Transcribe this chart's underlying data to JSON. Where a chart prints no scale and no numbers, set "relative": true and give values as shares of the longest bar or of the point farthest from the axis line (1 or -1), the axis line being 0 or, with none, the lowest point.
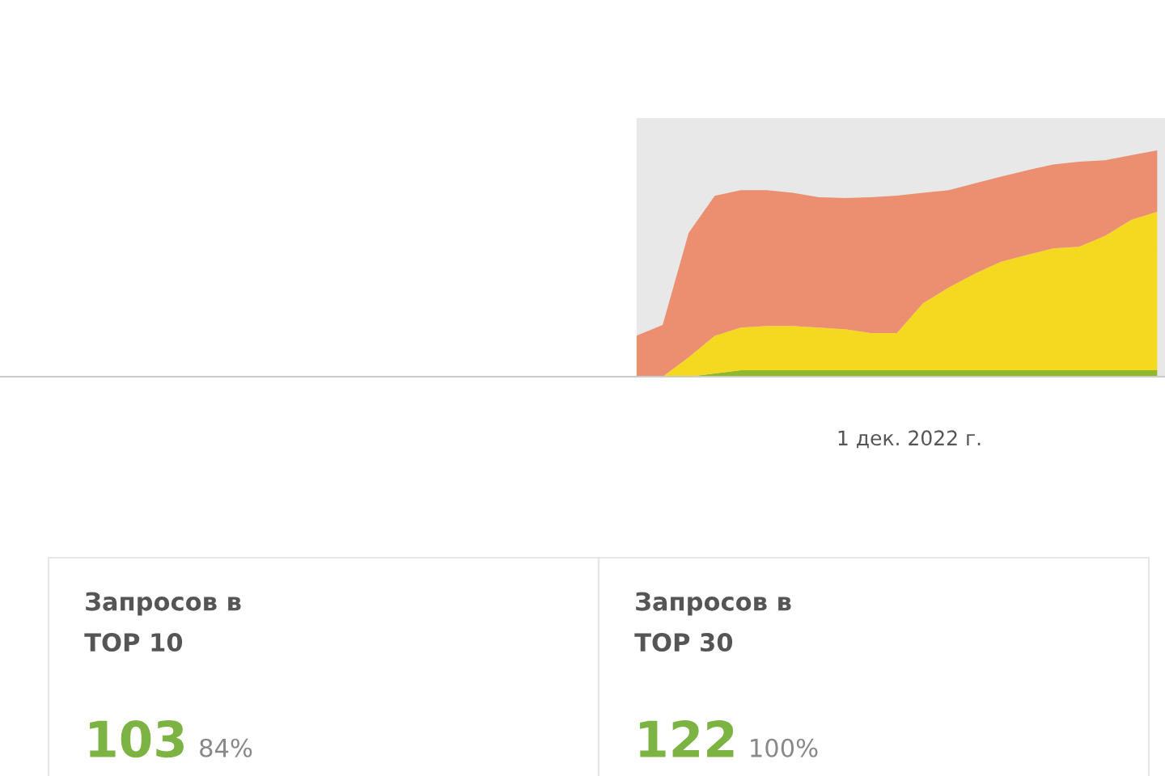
{
  "chart_data": [
    {
      "type": "area",
      "stacked": true,
      "relative": true,
      "categories": [
        null,
        null,
        null,
        null,
        null,
        null,
        null,
        null,
        null,
        null,
        null,
        null,
        null,
        null,
        null,
        null,
        null,
        null,
        null,
        null,
        null,
        null,
        null,
        null,
        null,
        null,
        null,
        null,
        null,
        null,
        null,
        null,
        null,
        null,
        null,
        null,
        null,
        null,
        null,
        null,
        null,
        null,
        null,
        null,
        null
      ],
      "annotations": [
        "1 дек. 2022 г."
      ],
      "series": [
        {
          "color": "#8fb82a",
          "values": [
            null,
            null,
            null,
            null,
            null,
            null,
            null,
            null,
            null,
            null,
            null,
            null,
            null,
            null,
            null,
            null,
            null,
            null,
            null,
            null,
            null,
            null,
            null,
            null,
            0,
            0,
            0,
            0.014,
            0.029,
            0.029,
            0.029,
            0.029,
            0.029,
            0.029,
            0.029,
            0.029,
            0.029,
            0.029,
            0.029,
            0.029,
            0.029,
            0.029,
            0.029,
            0.029,
            0.029
          ]
        },
        {
          "color": "#f5d820",
          "values": [
            null,
            null,
            null,
            null,
            null,
            null,
            null,
            null,
            null,
            null,
            null,
            null,
            null,
            null,
            null,
            null,
            null,
            null,
            null,
            null,
            null,
            null,
            null,
            null,
            0,
            0,
            0.086,
            0.166,
            0.188,
            0.195,
            0.195,
            0.188,
            0.181,
            0.164,
            0.164,
            0.295,
            0.366,
            0.426,
            0.479,
            0.509,
            0.538,
            0.545,
            0.593,
            0.664,
            0.7
          ]
        },
        {
          "color": "#ec8f70",
          "values": [
            null,
            null,
            null,
            null,
            null,
            null,
            null,
            null,
            null,
            null,
            null,
            null,
            null,
            null,
            null,
            null,
            null,
            null,
            null,
            null,
            null,
            null,
            null,
            null,
            0.181,
            0.229,
            0.55,
            0.619,
            0.607,
            0.6,
            0.589,
            0.576,
            0.579,
            0.6,
            0.607,
            0.489,
            0.429,
            0.4,
            0.376,
            0.374,
            0.371,
            0.376,
            0.334,
            0.286,
            0.271
          ]
        }
      ]
    },
    {
      "type": "other",
      "title": "Запросов в\nTOP 10",
      "annotations": [
        "103",
        "84%"
      ]
    },
    {
      "type": "other",
      "title": "Запросов в\nTOP 30",
      "annotations": [
        "122",
        "100%"
      ]
    }
  ]
}
